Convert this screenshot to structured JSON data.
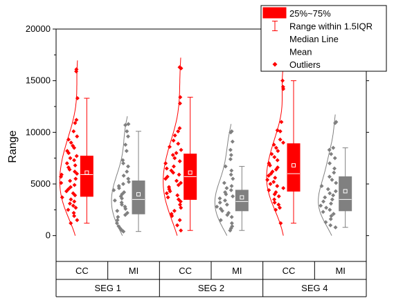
{
  "chart_data": {
    "type": "box",
    "ylabel": "Range",
    "ylim": [
      -2500,
      20000
    ],
    "yticks": [
      0,
      5000,
      10000,
      15000,
      20000
    ],
    "xlabel": "",
    "x_inner_labels": [
      "CC",
      "MI",
      "CC",
      "MI",
      "CC",
      "MI"
    ],
    "x_group_labels": [
      "SEG 1",
      "SEG 2",
      "SEG 4"
    ],
    "legend": {
      "position": "top-right",
      "entries": [
        "25%~75%",
        "Range within 1.5IQR",
        "Median Line",
        "Mean",
        "Outliers"
      ]
    },
    "colors": {
      "CC": "#ff0000",
      "MI": "#808080"
    },
    "series": [
      {
        "group": "SEG 1",
        "category": "CC",
        "q1": 3800,
        "median": 5900,
        "q3": 7700,
        "mean": 6100,
        "whisker_low": 1200,
        "whisker_high": 13300,
        "points": [
          16100,
          15900,
          13300,
          11200,
          10900,
          10100,
          9600,
          9300,
          9000,
          8700,
          8500,
          8200,
          8000,
          7700,
          7500,
          7300,
          7000,
          6800,
          6600,
          6400,
          6200,
          6000,
          5900,
          5700,
          5500,
          5300,
          5100,
          4900,
          4700,
          4500,
          4300,
          4100,
          3900,
          3700,
          3500,
          3300,
          3100,
          2900,
          2700,
          2500,
          2200,
          1900,
          1500,
          1200
        ]
      },
      {
        "group": "SEG 1",
        "category": "MI",
        "q1": 2100,
        "median": 3500,
        "q3": 5300,
        "mean": 4000,
        "whisker_low": 400,
        "whisker_high": 10100,
        "points": [
          10800,
          10700,
          10100,
          9600,
          8800,
          8200,
          7300,
          7000,
          6700,
          6200,
          5800,
          5500,
          5200,
          5000,
          4800,
          4600,
          4400,
          4200,
          4000,
          3800,
          3600,
          3400,
          3200,
          3000,
          2800,
          2600,
          2400,
          2200,
          2000,
          1800,
          1500,
          1200,
          900,
          700,
          500,
          400
        ]
      },
      {
        "group": "SEG 2",
        "category": "CC",
        "q1": 3500,
        "median": 5700,
        "q3": 7900,
        "mean": 6100,
        "whisker_low": 500,
        "whisker_high": 13400,
        "points": [
          16300,
          16200,
          13400,
          12800,
          10400,
          10100,
          9700,
          9200,
          8900,
          8600,
          8300,
          8000,
          7800,
          7500,
          7200,
          7000,
          6700,
          6500,
          6300,
          6100,
          5900,
          5700,
          5500,
          5300,
          5100,
          4900,
          4700,
          4500,
          4300,
          4100,
          3900,
          3700,
          3500,
          3300,
          3000,
          2700,
          2400,
          2100,
          1900,
          1500,
          1000,
          500
        ]
      },
      {
        "group": "SEG 2",
        "category": "MI",
        "q1": 2400,
        "median": 3300,
        "q3": 4400,
        "mean": 3700,
        "whisker_low": 500,
        "whisker_high": 6700,
        "points": [
          10100,
          10000,
          9100,
          8300,
          7800,
          7400,
          6700,
          6300,
          5900,
          5500,
          5100,
          4800,
          4600,
          4400,
          4200,
          4000,
          3800,
          3600,
          3400,
          3200,
          3000,
          2800,
          2600,
          2400,
          2200,
          2000,
          1800,
          1500,
          1200,
          900,
          700,
          500
        ]
      },
      {
        "group": "SEG 4",
        "category": "CC",
        "q1": 4300,
        "median": 6000,
        "q3": 8900,
        "mean": 6800,
        "whisker_low": 1200,
        "whisker_high": 15000,
        "points": [
          16300,
          15000,
          14400,
          14200,
          11000,
          10200,
          10100,
          9300,
          9000,
          8800,
          8500,
          8200,
          7900,
          7600,
          7300,
          7000,
          6800,
          6600,
          6400,
          6200,
          6000,
          5800,
          5600,
          5400,
          5200,
          5000,
          4800,
          4600,
          4400,
          4200,
          4000,
          3800,
          3500,
          3200,
          3000,
          2700,
          2500,
          1200
        ]
      },
      {
        "group": "SEG 4",
        "category": "MI",
        "q1": 2400,
        "median": 3500,
        "q3": 5700,
        "mean": 4300,
        "whisker_low": 800,
        "whisker_high": 8500,
        "points": [
          11000,
          10900,
          8500,
          8300,
          7900,
          7500,
          7000,
          6500,
          6100,
          5700,
          5400,
          5100,
          4800,
          4500,
          4300,
          4100,
          3900,
          3700,
          3500,
          3300,
          3100,
          2900,
          2700,
          2500,
          2300,
          2100,
          1900,
          1600,
          1300,
          1000,
          800
        ]
      }
    ]
  }
}
